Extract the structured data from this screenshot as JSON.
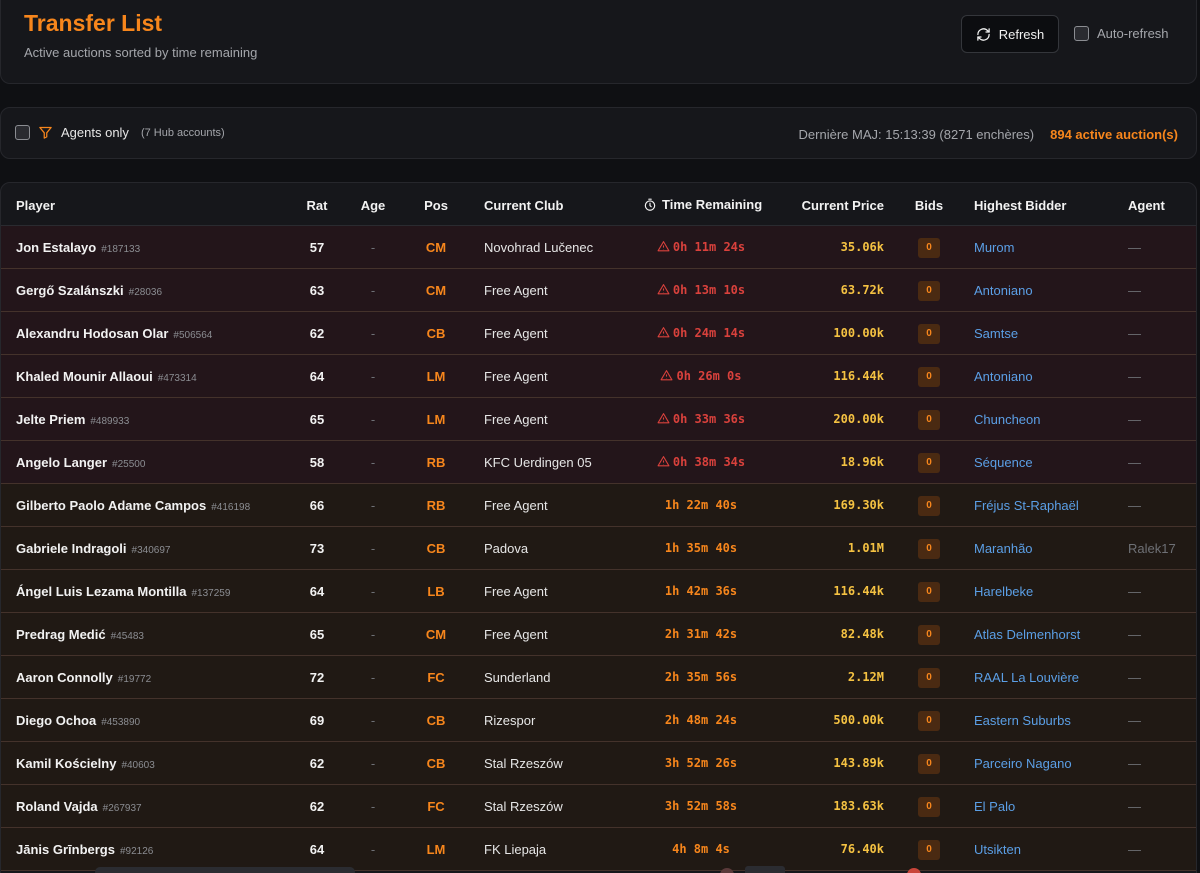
{
  "header": {
    "title": "Transfer List",
    "subtitle": "Active auctions sorted by time remaining",
    "refresh_label": "Refresh",
    "auto_refresh_label": "Auto-refresh"
  },
  "filters": {
    "agents_only_label": "Agents only",
    "agents_hint": "(7 Hub accounts)",
    "last_update": "Dernière MAJ: 15:13:39 (8271 enchères)",
    "active_count": "894 active auction(s)"
  },
  "columns": {
    "player": "Player",
    "rat": "Rat",
    "age": "Age",
    "pos": "Pos",
    "club": "Current Club",
    "time": "Time Remaining",
    "price": "Current Price",
    "bids": "Bids",
    "bidder": "Highest Bidder",
    "agent": "Agent"
  },
  "colors": {
    "accent": "#f7861c",
    "urgent": "#d9413c",
    "price": "#f5c242",
    "link": "#5b9fe6"
  },
  "rows": [
    {
      "name": "Jon Estalayo",
      "id": "#187133",
      "rat": "57",
      "age": "-",
      "pos": "CM",
      "club": "Novohrad Lučenec",
      "time": "0h 11m 24s",
      "urgent": true,
      "price": "35.06k",
      "bids": "0",
      "bidder": "Murom",
      "agent": "—"
    },
    {
      "name": "Gergő Szalánszki",
      "id": "#28036",
      "rat": "63",
      "age": "-",
      "pos": "CM",
      "club": "Free Agent",
      "time": "0h 13m 10s",
      "urgent": true,
      "price": "63.72k",
      "bids": "0",
      "bidder": "Antoniano",
      "agent": "—"
    },
    {
      "name": "Alexandru Hodosan Olar",
      "id": "#506564",
      "rat": "62",
      "age": "-",
      "pos": "CB",
      "club": "Free Agent",
      "time": "0h 24m 14s",
      "urgent": true,
      "price": "100.00k",
      "bids": "0",
      "bidder": "Samtse",
      "agent": "—"
    },
    {
      "name": "Khaled Mounir Allaoui",
      "id": "#473314",
      "rat": "64",
      "age": "-",
      "pos": "LM",
      "club": "Free Agent",
      "time": "0h 26m 0s",
      "urgent": true,
      "price": "116.44k",
      "bids": "0",
      "bidder": "Antoniano",
      "agent": "—"
    },
    {
      "name": "Jelte Priem",
      "id": "#489933",
      "rat": "65",
      "age": "-",
      "pos": "LM",
      "club": "Free Agent",
      "time": "0h 33m 36s",
      "urgent": true,
      "price": "200.00k",
      "bids": "0",
      "bidder": "Chuncheon",
      "agent": "—"
    },
    {
      "name": "Angelo Langer",
      "id": "#25500",
      "rat": "58",
      "age": "-",
      "pos": "RB",
      "club": "KFC Uerdingen 05",
      "time": "0h 38m 34s",
      "urgent": true,
      "price": "18.96k",
      "bids": "0",
      "bidder": "Séquence",
      "agent": "—"
    },
    {
      "name": "Gilberto Paolo Adame Campos",
      "id": "#416198",
      "rat": "66",
      "age": "-",
      "pos": "RB",
      "club": "Free Agent",
      "time": "1h 22m 40s",
      "urgent": false,
      "price": "169.30k",
      "bids": "0",
      "bidder": "Fréjus St-Raphaël",
      "agent": "—"
    },
    {
      "name": "Gabriele Indragoli",
      "id": "#340697",
      "rat": "73",
      "age": "-",
      "pos": "CB",
      "club": "Padova",
      "time": "1h 35m 40s",
      "urgent": false,
      "price": "1.01M",
      "bids": "0",
      "bidder": "Maranhão",
      "agent": "Ralek17"
    },
    {
      "name": "Ángel Luis Lezama Montilla",
      "id": "#137259",
      "rat": "64",
      "age": "-",
      "pos": "LB",
      "club": "Free Agent",
      "time": "1h 42m 36s",
      "urgent": false,
      "price": "116.44k",
      "bids": "0",
      "bidder": "Harelbeke",
      "agent": "—"
    },
    {
      "name": "Predrag Medić",
      "id": "#45483",
      "rat": "65",
      "age": "-",
      "pos": "CM",
      "club": "Free Agent",
      "time": "2h 31m 42s",
      "urgent": false,
      "price": "82.48k",
      "bids": "0",
      "bidder": "Atlas Delmenhorst",
      "agent": "—"
    },
    {
      "name": "Aaron Connolly",
      "id": "#19772",
      "rat": "72",
      "age": "-",
      "pos": "FC",
      "club": "Sunderland",
      "time": "2h 35m 56s",
      "urgent": false,
      "price": "2.12M",
      "bids": "0",
      "bidder": "RAAL La Louvière",
      "agent": "—"
    },
    {
      "name": "Diego Ochoa",
      "id": "#453890",
      "rat": "69",
      "age": "-",
      "pos": "CB",
      "club": "Rizespor",
      "time": "2h 48m 24s",
      "urgent": false,
      "price": "500.00k",
      "bids": "0",
      "bidder": "Eastern Suburbs",
      "agent": "—"
    },
    {
      "name": "Kamil Kościelny",
      "id": "#40603",
      "rat": "62",
      "age": "-",
      "pos": "CB",
      "club": "Stal Rzeszów",
      "time": "3h 52m 26s",
      "urgent": false,
      "price": "143.89k",
      "bids": "0",
      "bidder": "Parceiro Nagano",
      "agent": "—"
    },
    {
      "name": "Roland Vajda",
      "id": "#267937",
      "rat": "62",
      "age": "-",
      "pos": "FC",
      "club": "Stal Rzeszów",
      "time": "3h 52m 58s",
      "urgent": false,
      "price": "183.63k",
      "bids": "0",
      "bidder": "El Palo",
      "agent": "—"
    },
    {
      "name": "Jānis Grīnbergs",
      "id": "#92126",
      "rat": "64",
      "age": "-",
      "pos": "LM",
      "club": "FK Liepaja",
      "time": "4h 8m 4s",
      "urgent": false,
      "price": "76.40k",
      "bids": "0",
      "bidder": "Utsikten",
      "agent": "—"
    }
  ]
}
